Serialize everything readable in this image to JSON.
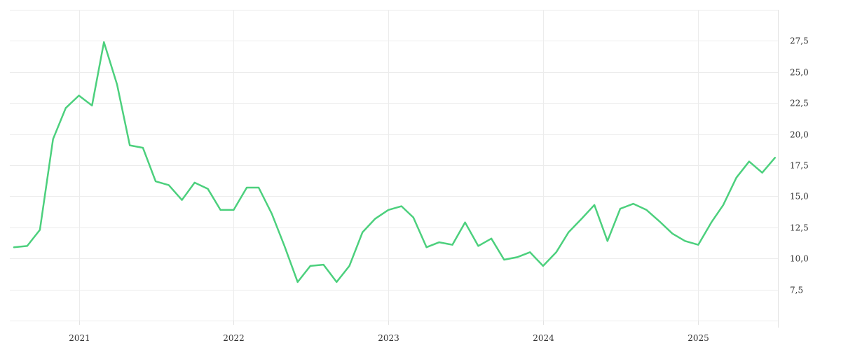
{
  "chart_data": {
    "type": "line",
    "title": "",
    "xlabel": "",
    "ylabel": "",
    "grid": true,
    "legend": "none",
    "color": "#4cd07d",
    "x_ticks": [
      "2021",
      "2022",
      "2023",
      "2024",
      "2025"
    ],
    "y_ticks": [
      "7,5",
      "10,0",
      "12,5",
      "15,0",
      "17,5",
      "20,0",
      "22,5",
      "25,0",
      "27,5"
    ],
    "y_tick_values": [
      7.5,
      10.0,
      12.5,
      15.0,
      17.5,
      20.0,
      22.5,
      25.0,
      27.5
    ],
    "ylim": [
      5.0,
      30.0
    ],
    "xlim": [
      "2020-07-22",
      "2025-07-08"
    ],
    "series": [
      {
        "x": [
          "2020-08-01",
          "2020-09-01",
          "2020-10-01",
          "2020-11-01",
          "2020-12-01",
          "2021-01-01",
          "2021-02-01",
          "2021-03-01",
          "2021-04-01",
          "2021-05-01",
          "2021-06-01",
          "2021-07-01",
          "2021-08-01",
          "2021-09-01",
          "2021-10-01",
          "2021-11-01",
          "2021-12-01",
          "2022-01-01",
          "2022-02-01",
          "2022-03-01",
          "2022-04-01",
          "2022-05-01",
          "2022-06-01",
          "2022-07-01",
          "2022-08-01",
          "2022-09-01",
          "2022-10-01",
          "2022-11-01",
          "2022-12-01",
          "2023-01-01",
          "2023-02-01",
          "2023-03-01",
          "2023-04-01",
          "2023-05-01",
          "2023-06-01",
          "2023-07-01",
          "2023-08-01",
          "2023-09-01",
          "2023-10-01",
          "2023-11-01",
          "2023-12-01",
          "2024-01-01",
          "2024-02-01",
          "2024-03-01",
          "2024-04-01",
          "2024-05-01",
          "2024-06-01",
          "2024-07-01",
          "2024-08-01",
          "2024-09-01",
          "2024-10-01",
          "2024-11-01",
          "2024-12-01",
          "2025-01-01",
          "2025-02-01",
          "2025-03-01",
          "2025-04-01",
          "2025-05-01",
          "2025-06-01",
          "2025-07-01"
        ],
        "values": [
          10.9,
          11.0,
          12.3,
          19.6,
          22.1,
          23.1,
          22.3,
          27.4,
          24.0,
          19.1,
          18.9,
          16.2,
          15.9,
          14.7,
          16.1,
          15.6,
          13.9,
          13.9,
          15.7,
          15.7,
          13.6,
          11.0,
          8.1,
          9.4,
          9.5,
          8.1,
          9.4,
          12.1,
          13.2,
          13.9,
          14.2,
          13.3,
          10.9,
          11.3,
          11.1,
          12.9,
          11.0,
          11.6,
          9.9,
          10.1,
          10.5,
          9.4,
          10.5,
          12.1,
          13.2,
          14.3,
          11.4,
          14.0,
          14.4,
          13.9,
          13.0,
          12.0,
          11.4,
          11.1,
          12.9,
          14.3,
          16.5,
          17.8,
          16.9,
          18.1
        ]
      }
    ]
  }
}
